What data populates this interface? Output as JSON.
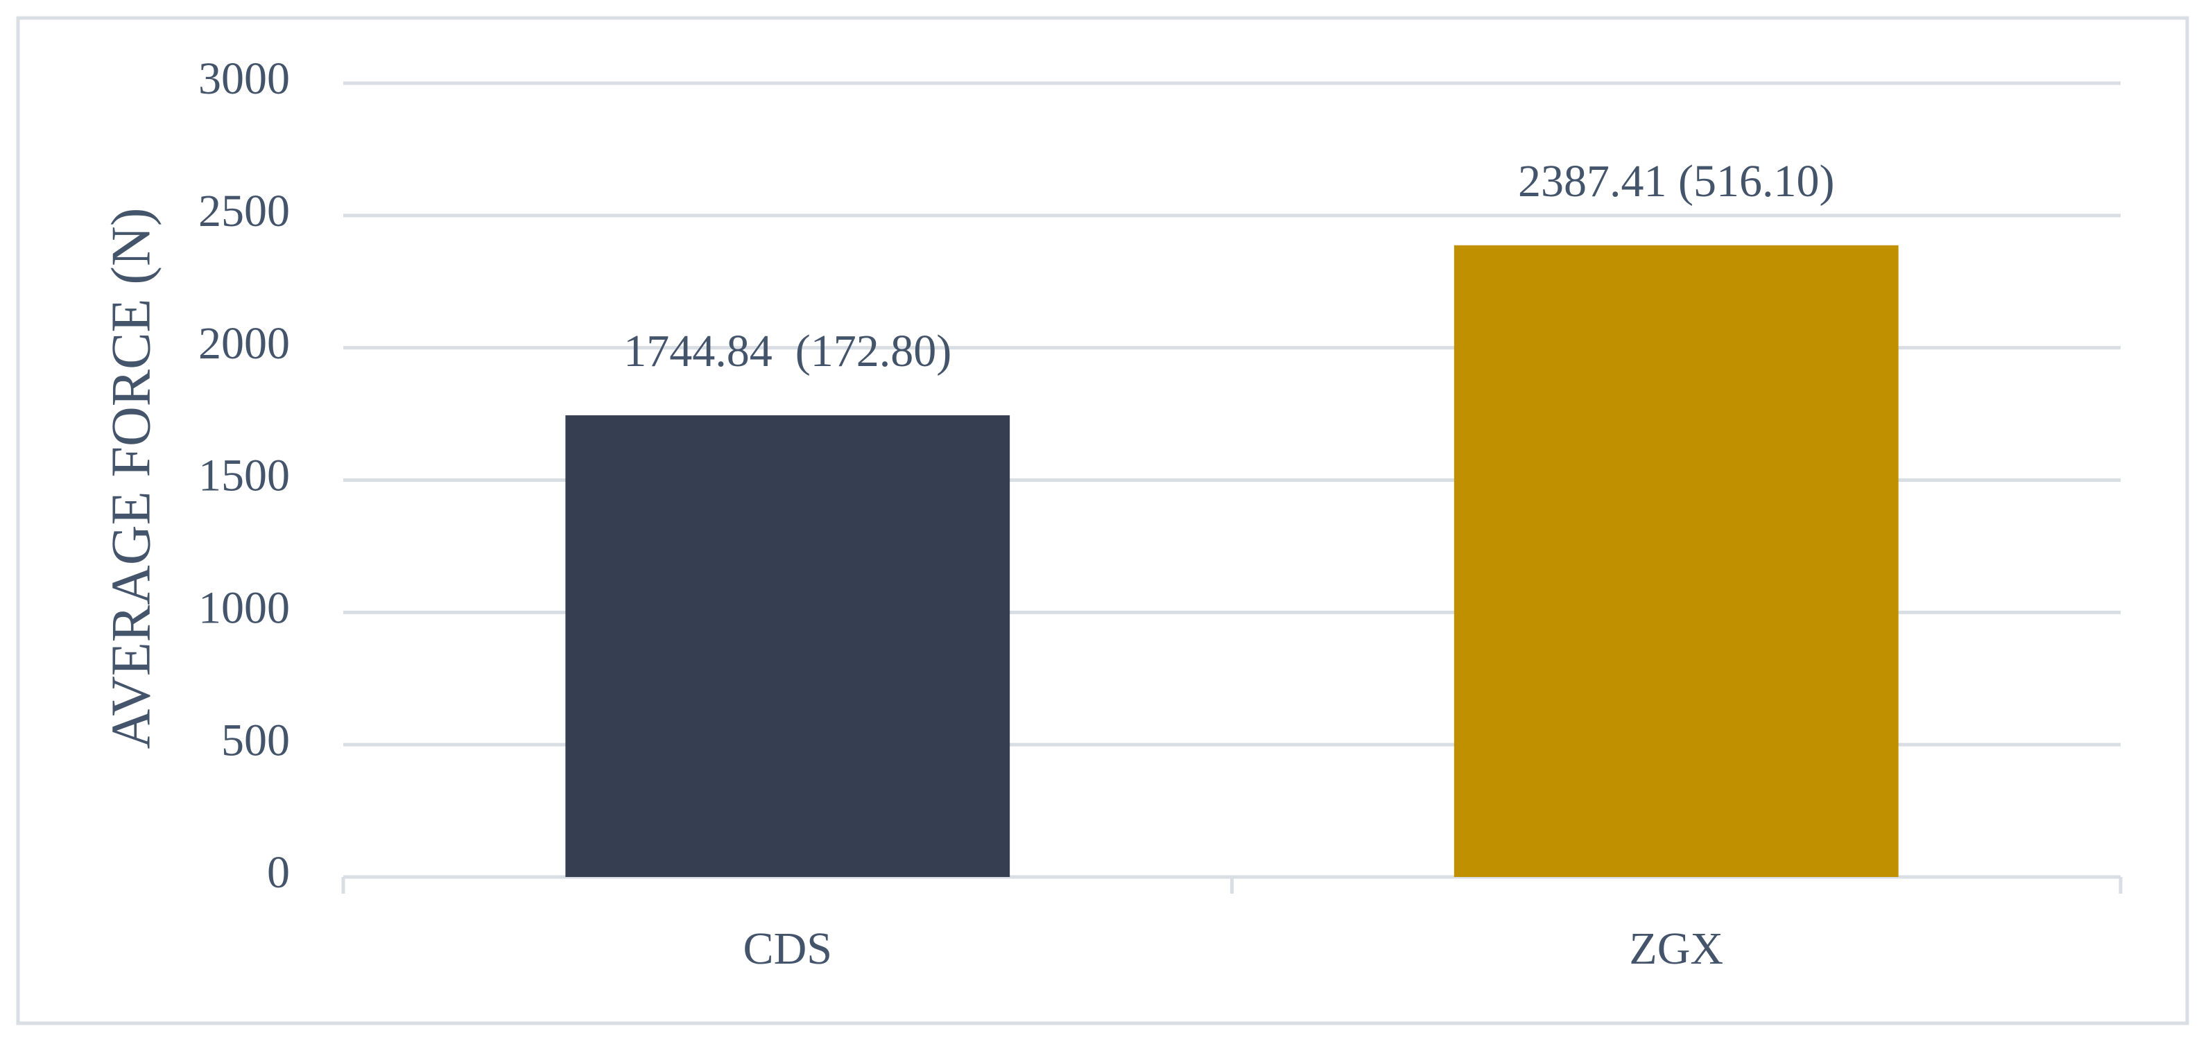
{
  "chart_data": {
    "type": "bar",
    "y_label": "AVERAGE FORCE (N)",
    "categories": [
      "CDS",
      "ZGX"
    ],
    "series": [
      {
        "colors": [
          "#353f51",
          "#c09000"
        ],
        "values": [
          1744.84,
          2387.41
        ],
        "value_labels": [
          "1744.84  (172.80)",
          "2387.41 (516.10)"
        ]
      }
    ],
    "ylim": [
      0,
      3000
    ],
    "yticks": [
      0,
      500,
      1000,
      1500,
      2000,
      2500,
      3000
    ],
    "grid": true
  }
}
